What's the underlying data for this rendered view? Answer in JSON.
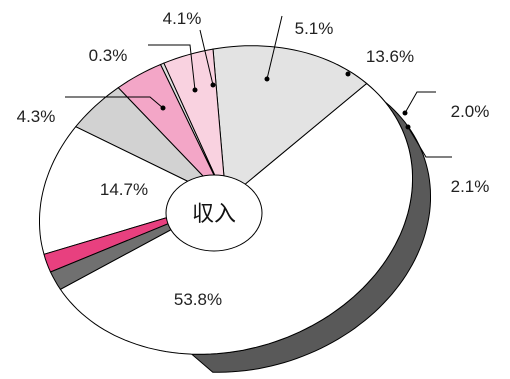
{
  "chart_data": {
    "type": "pie",
    "center_label": "収入",
    "slices": [
      {
        "label": "53.8%",
        "value": 53.8,
        "color": "#ffffff"
      },
      {
        "label": "14.7%",
        "value": 14.7,
        "color": "#e3e3e3"
      },
      {
        "label": "4.3%",
        "value": 4.3,
        "color": "#f9d2e0"
      },
      {
        "label": "0.3%",
        "value": 0.3,
        "color": "#e0e0e0"
      },
      {
        "label": "4.1%",
        "value": 4.1,
        "color": "#f3a6c7"
      },
      {
        "label": "5.1%",
        "value": 5.1,
        "color": "#d2d2d2"
      },
      {
        "label": "13.6%",
        "value": 13.6,
        "color": "#ffffff"
      },
      {
        "label": "2.0%",
        "value": 2.0,
        "color": "#e8407f"
      },
      {
        "label": "2.1%",
        "value": 2.1,
        "color": "#707070"
      }
    ],
    "edge_color": "#595959",
    "outline_color": "#000000"
  }
}
